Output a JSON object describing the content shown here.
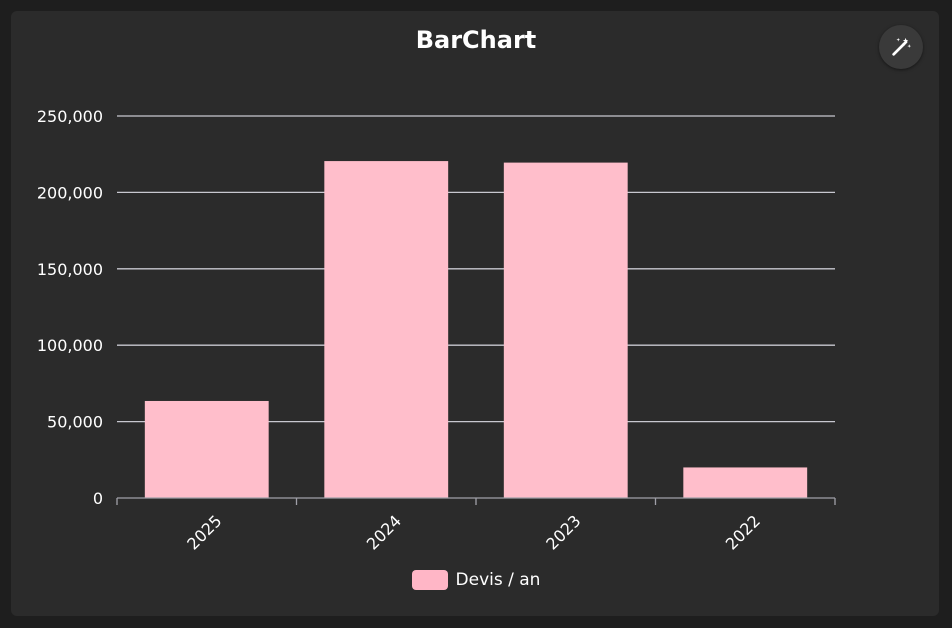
{
  "colors": {
    "page_bg": "#1e1e1e",
    "card_bg": "#2b2b2b",
    "bar": "#ffbecb",
    "grid": "#c8c8d0",
    "text": "#ffffff"
  },
  "toolbar": {
    "magic_icon": "magic-wand-icon"
  },
  "chart_data": {
    "type": "bar",
    "title": "BarChart",
    "categories": [
      "2025",
      "2024",
      "2023",
      "2022"
    ],
    "series": [
      {
        "name": "Devis / an",
        "values": [
          63500,
          220500,
          219500,
          20000
        ]
      }
    ],
    "ylim": [
      0,
      250000
    ],
    "yticks": [
      0,
      50000,
      100000,
      150000,
      200000,
      250000
    ],
    "ytick_labels": [
      "0",
      "50,000",
      "100,000",
      "150,000",
      "200,000",
      "250,000"
    ],
    "xlabel": "",
    "ylabel": "",
    "grid": true,
    "legend_position": "bottom"
  }
}
